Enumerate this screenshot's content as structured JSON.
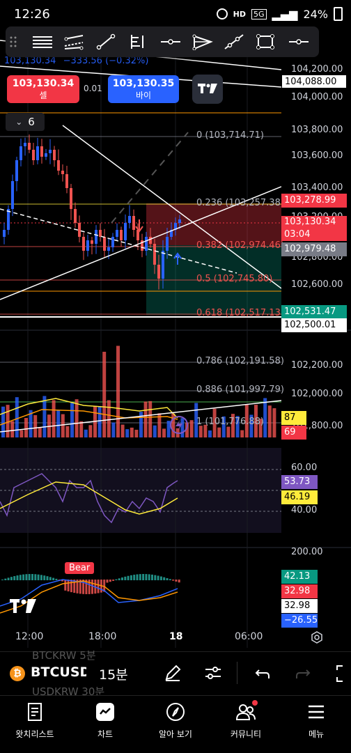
{
  "status": {
    "time": "12:26",
    "battery": "24%",
    "network": "5G",
    "hd": "HD"
  },
  "drawbar": {
    "tools": [
      "drag-handle-icon",
      "horizontal-lines-icon",
      "parallel-channel-icon",
      "trend-line-icon",
      "fib-tool-icon",
      "horizontal-ray-icon",
      "pitchfork-icon",
      "extended-line-icon",
      "rectangle-icon",
      "horizontal-line-icon"
    ]
  },
  "header": {
    "ohlc_partial": "103,130.34",
    "change": "−333.56 (−0.32%)"
  },
  "trade": {
    "sell_price": "103,130.34",
    "sell_label": "셀",
    "spread": "0.01",
    "buy_price": "103,130.35",
    "buy_label": "바이"
  },
  "indicators_toggle": {
    "count": "6"
  },
  "fib": [
    {
      "label": "0 (103,714.71)"
    },
    {
      "label": "0.236 (103,257.38)"
    },
    {
      "label": "0.382 (102,974.46)"
    },
    {
      "label": "0.5 (102,745.80)"
    },
    {
      "label": "0.618 (102,517.13)"
    },
    {
      "label": "0.786 (102,191.58)"
    },
    {
      "label": "0.886 (101,997.79)"
    },
    {
      "label": "1 (101,776.88)"
    }
  ],
  "price_axis": [
    "104,200.00",
    "104,000.00",
    "103,800.00",
    "103,600.00",
    "103,400.00",
    "103,200.00",
    "102,800.00",
    "102,600.00",
    "102,200.00",
    "102,000.00",
    "101,800.00"
  ],
  "price_boxes": {
    "top_line": "104,088.00",
    "red1": "103,278.99",
    "current": "103,130.34",
    "countdown": "03:04",
    "gray": "102,979.48",
    "green": "102,531.47",
    "white_line": "102,500.01",
    "vol_yellow": "87",
    "vol_red": "69"
  },
  "rsi": {
    "axis": [
      "60.00",
      "40.00"
    ],
    "value1": "53.73",
    "value2": "46.19"
  },
  "macd": {
    "axis": [
      "200.00"
    ],
    "bear_label": "Bear",
    "v1": "42.13",
    "v2": "32.98",
    "v3": "32.98",
    "v4": "−26.55"
  },
  "time_axis": [
    "12:00",
    "18:00",
    "18",
    "06:00"
  ],
  "symbol": {
    "ticker": "BTCUSD",
    "interval": "15분",
    "ghost_top": "BTCKRW 5분",
    "ghost_bottom": "USDKRW 30분"
  },
  "nav": [
    {
      "label": "왓치리스트"
    },
    {
      "label": "차트"
    },
    {
      "label": "알아 보기"
    },
    {
      "label": "커뮤니티"
    },
    {
      "label": "메뉴"
    }
  ],
  "colors": {
    "up": "#26a69a",
    "down": "#ef5350",
    "bg": "#000000",
    "blue": "#2962ff",
    "purple": "#7e57c2",
    "yellow": "#ffeb3b"
  }
}
